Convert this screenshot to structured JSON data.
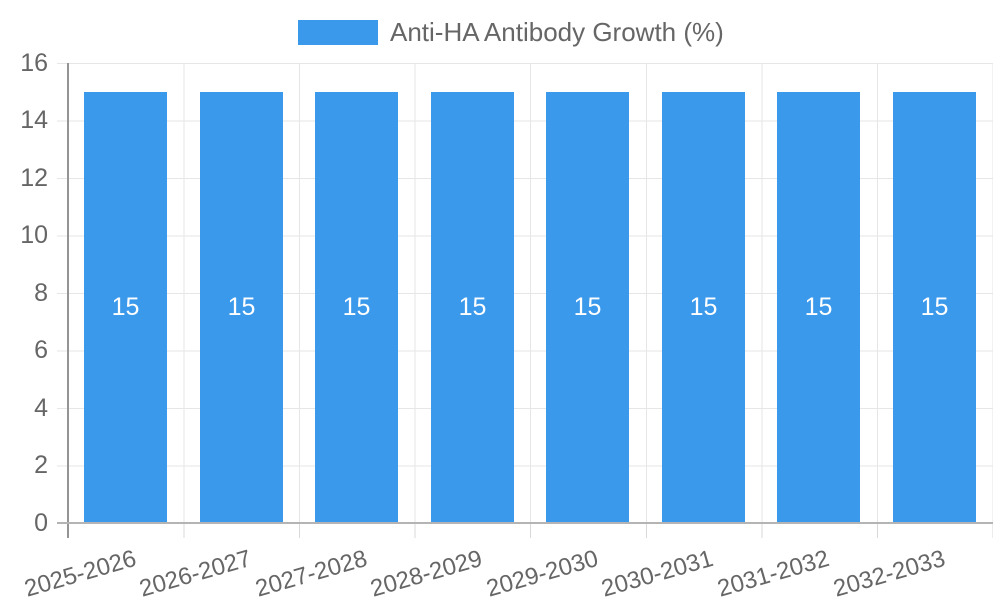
{
  "legend": {
    "label": "Anti-HA Antibody Growth (%)"
  },
  "colors": {
    "bar": "#3B99EC",
    "gridline": "#e6e6e6",
    "y_axis_line": "#949494",
    "x_axis_line": "#b4b4b4",
    "tick_text": "#666666",
    "bar_value_text": "#ffffff",
    "background": "#ffffff"
  },
  "chart_data": {
    "type": "bar",
    "title": "Anti-HA Antibody Growth (%)",
    "categories": [
      "2025-2026",
      "2026-2027",
      "2027-2028",
      "2028-2029",
      "2029-2030",
      "2030-2031",
      "2031-2032",
      "2032-2033"
    ],
    "values": [
      15,
      15,
      15,
      15,
      15,
      15,
      15,
      15
    ],
    "y_tick_labels": [
      "16",
      "14",
      "12",
      "10",
      "8",
      "6",
      "4",
      "2",
      "0"
    ],
    "xlabel": "",
    "ylabel": "",
    "ylim": [
      0,
      16
    ],
    "y_tick_step": 2,
    "grid": true,
    "legend_position": "top-center",
    "value_labels": "centered-inside-bars-white",
    "x_label_rotation_deg": -16
  }
}
